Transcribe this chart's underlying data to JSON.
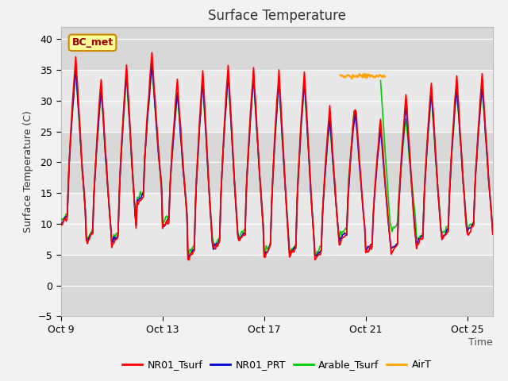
{
  "title": "Surface Temperature",
  "xlabel": "Time",
  "ylabel": "Surface Temperature (C)",
  "ylim": [
    -5,
    42
  ],
  "x_tick_labels": [
    "Oct 9",
    "Oct 13",
    "Oct 17",
    "Oct 21",
    "Oct 25"
  ],
  "x_tick_positions": [
    0,
    4,
    8,
    12,
    16
  ],
  "annotation_text": "BC_met",
  "annotation_box_color": "#ffff99",
  "annotation_border_color": "#cc8800",
  "line_colors": {
    "NR01_Tsurf": "#ff0000",
    "NR01_PRT": "#0000dd",
    "Arable_Tsurf": "#00cc00",
    "AirT": "#ffa500"
  },
  "yticks": [
    -5,
    0,
    5,
    10,
    15,
    20,
    25,
    30,
    35,
    40
  ],
  "title_fontsize": 12,
  "axis_label_fontsize": 9,
  "tick_fontsize": 9
}
